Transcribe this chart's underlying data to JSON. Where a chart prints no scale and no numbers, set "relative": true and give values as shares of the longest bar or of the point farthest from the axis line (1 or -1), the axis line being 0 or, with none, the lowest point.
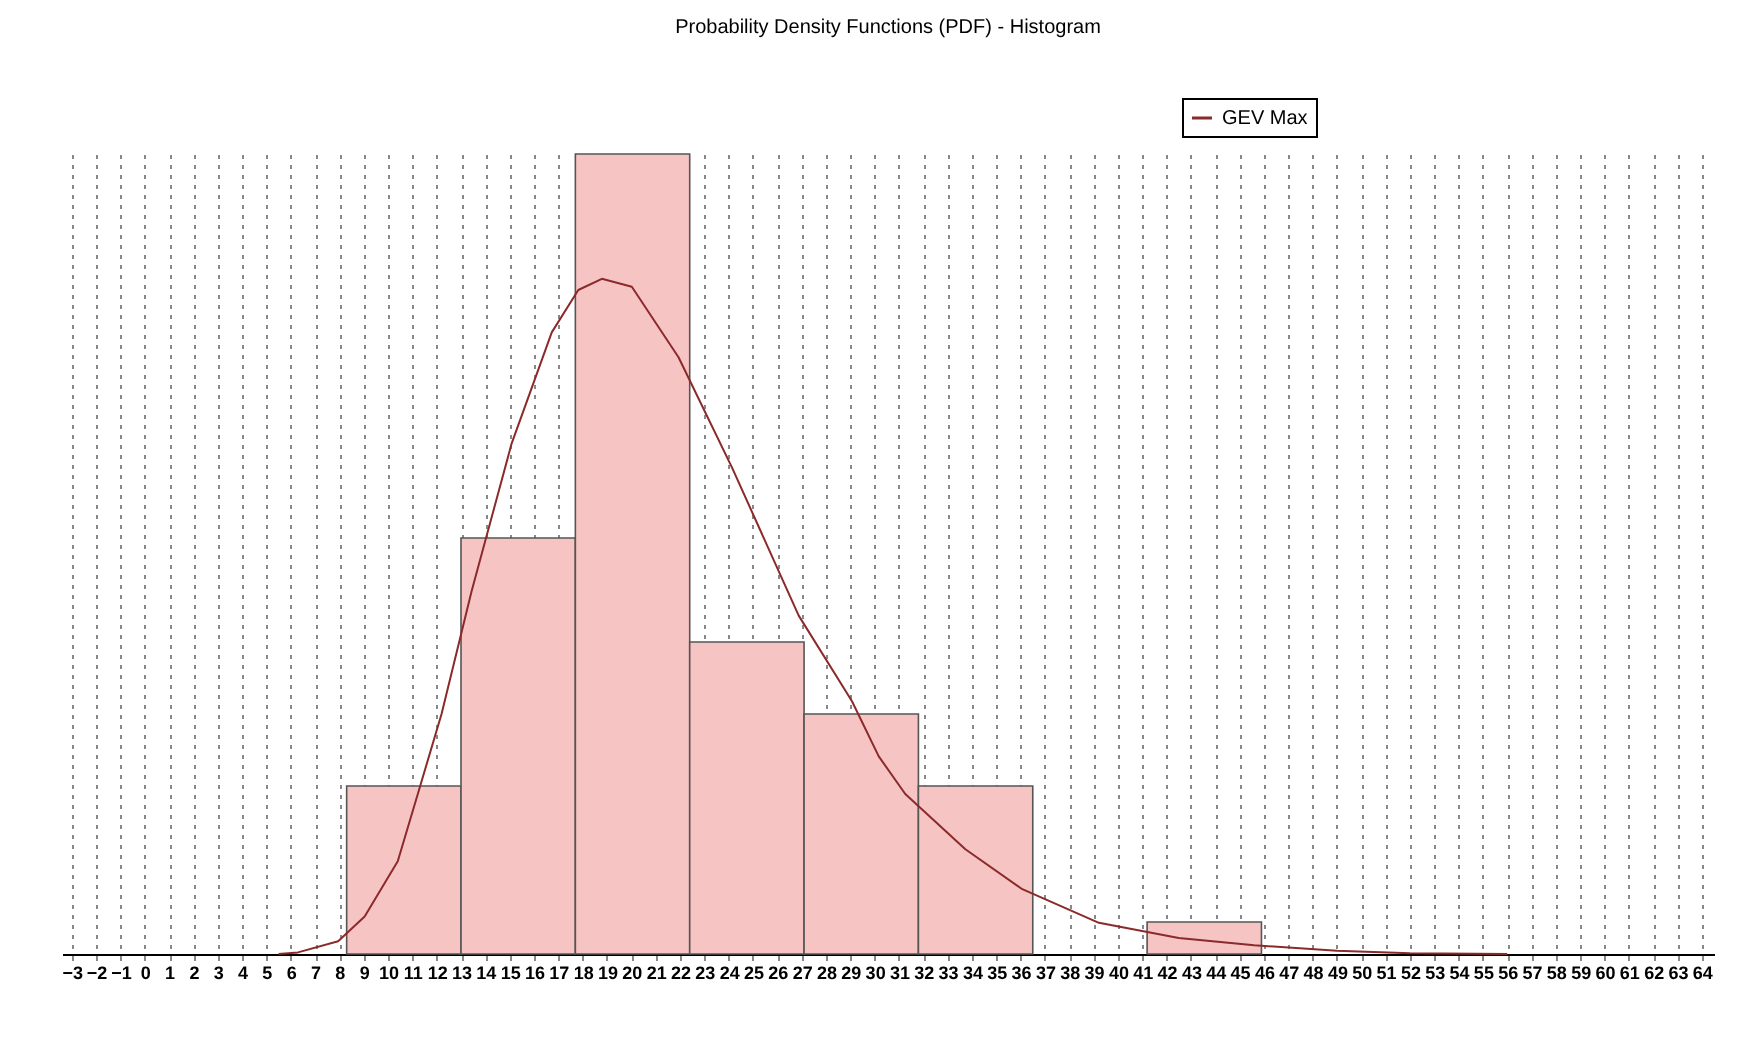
{
  "chart_data": {
    "type": "histogram",
    "title": "Probability Density Functions (PDF) - Histogram",
    "relative": true,
    "bins": [
      8.3,
      13.0,
      17.7,
      22.4,
      27.1,
      31.8,
      36.5,
      41.2,
      45.9
    ],
    "values": [
      0.21,
      0.52,
      1,
      0.39,
      0.3,
      0.21,
      0,
      0.04
    ],
    "color": "#f7c4c4",
    "series": [
      {
        "name": "GEV Max",
        "type": "line",
        "color": "#8b2a2a",
        "x": [
          5.5,
          6.3,
          7.95,
          9.04,
          10.4,
          11.38,
          12.2,
          13.44,
          15.08,
          16.73,
          17.82,
          18.79,
          20.02,
          21.94,
          24.14,
          26.88,
          29.07,
          30.17,
          31.26,
          33.73,
          36.07,
          39.22,
          42.5,
          45.6,
          49,
          52,
          56
        ],
        "values": [
          0,
          0.002,
          0.016,
          0.047,
          0.116,
          0.216,
          0.3,
          0.454,
          0.638,
          0.777,
          0.83,
          0.844,
          0.834,
          0.746,
          0.608,
          0.423,
          0.316,
          0.247,
          0.2,
          0.131,
          0.081,
          0.039,
          0.02,
          0.011,
          0.004,
          0.001,
          0
        ]
      }
    ],
    "xlim": [
      -3.4,
      64.5
    ],
    "xticks": [
      -3,
      -2,
      -1,
      0,
      1,
      2,
      3,
      4,
      5,
      6,
      7,
      8,
      9,
      10,
      11,
      12,
      13,
      14,
      15,
      16,
      17,
      18,
      19,
      20,
      21,
      22,
      23,
      24,
      25,
      26,
      27,
      28,
      29,
      30,
      31,
      32,
      33,
      34,
      35,
      36,
      37,
      38,
      39,
      40,
      41,
      42,
      43,
      44,
      45,
      46,
      47,
      48,
      49,
      50,
      51,
      52,
      53,
      54,
      55,
      56,
      57,
      58,
      59,
      60,
      61,
      62,
      63,
      64
    ],
    "grid": "x",
    "legend": "top"
  }
}
